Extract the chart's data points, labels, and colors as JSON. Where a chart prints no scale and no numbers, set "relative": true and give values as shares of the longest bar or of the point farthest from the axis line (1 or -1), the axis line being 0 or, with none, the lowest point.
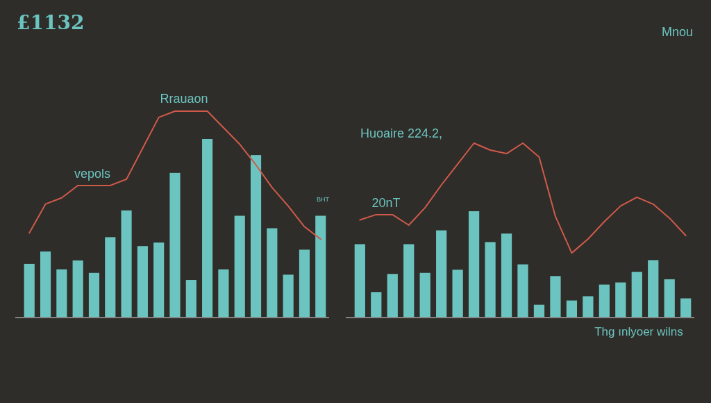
{
  "chart_data": [
    {
      "type": "bar",
      "title": "£1132",
      "relative": true,
      "grid": false,
      "categories": [
        null,
        null,
        null,
        null,
        null,
        null,
        null,
        null,
        null,
        null,
        null,
        null,
        null,
        null,
        null,
        null,
        null,
        null,
        null
      ],
      "annotations": [
        "Rrauaon",
        "vepols",
        "BHT"
      ],
      "series": [
        {
          "color": "#6cc4c0",
          "values": [
            0.3,
            0.37,
            0.27,
            0.32,
            0.25,
            0.45,
            0.6,
            0.4,
            0.42,
            0.81,
            0.21,
            1,
            0.27,
            0.57,
            0.91,
            0.5,
            0.24,
            0.38,
            0.57
          ]
        }
      ]
    },
    {
      "type": "line",
      "relative": true,
      "categories": [
        null,
        null,
        null,
        null,
        null,
        null,
        null,
        null,
        null,
        null,
        null,
        null,
        null,
        null,
        null,
        null,
        null,
        null,
        null
      ],
      "series": [
        {
          "color": "#d05a4a",
          "values": [
            0.41,
            0.55,
            0.58,
            0.64,
            0.64,
            0.64,
            0.67,
            0.82,
            0.97,
            1,
            1,
            1,
            0.92,
            0.84,
            0.74,
            0.63,
            0.54,
            0.44,
            0.38
          ]
        }
      ]
    },
    {
      "type": "bar",
      "title": "Mnou",
      "relative": true,
      "grid": false,
      "categories": [
        null,
        null,
        null,
        null,
        null,
        null,
        null,
        null,
        null,
        null,
        null,
        null,
        null,
        null,
        null,
        null,
        null,
        null,
        null,
        null,
        null
      ],
      "annotations": [
        "Huoaire 224.2,",
        "20nT",
        "Thg ınlyoer wilns"
      ],
      "series": [
        {
          "color": "#6cc4c0",
          "values": [
            0.69,
            0.24,
            0.41,
            0.69,
            0.42,
            0.82,
            0.45,
            1,
            0.71,
            0.79,
            0.5,
            0.12,
            0.39,
            0.16,
            0.2,
            0.31,
            0.33,
            0.43,
            0.54,
            0.36,
            0.18
          ]
        }
      ]
    },
    {
      "type": "line",
      "relative": true,
      "categories": [
        null,
        null,
        null,
        null,
        null,
        null,
        null,
        null,
        null,
        null,
        null,
        null,
        null,
        null,
        null,
        null,
        null,
        null,
        null,
        null,
        null
      ],
      "series": [
        {
          "color": "#d05a4a",
          "values": [
            0.56,
            0.59,
            0.59,
            0.53,
            0.63,
            0.76,
            0.88,
            1.0,
            0.96,
            0.94,
            1.0,
            0.92,
            0.58,
            0.37,
            0.45,
            0.55,
            0.64,
            0.69,
            0.65,
            0.57,
            0.47
          ]
        }
      ]
    }
  ]
}
